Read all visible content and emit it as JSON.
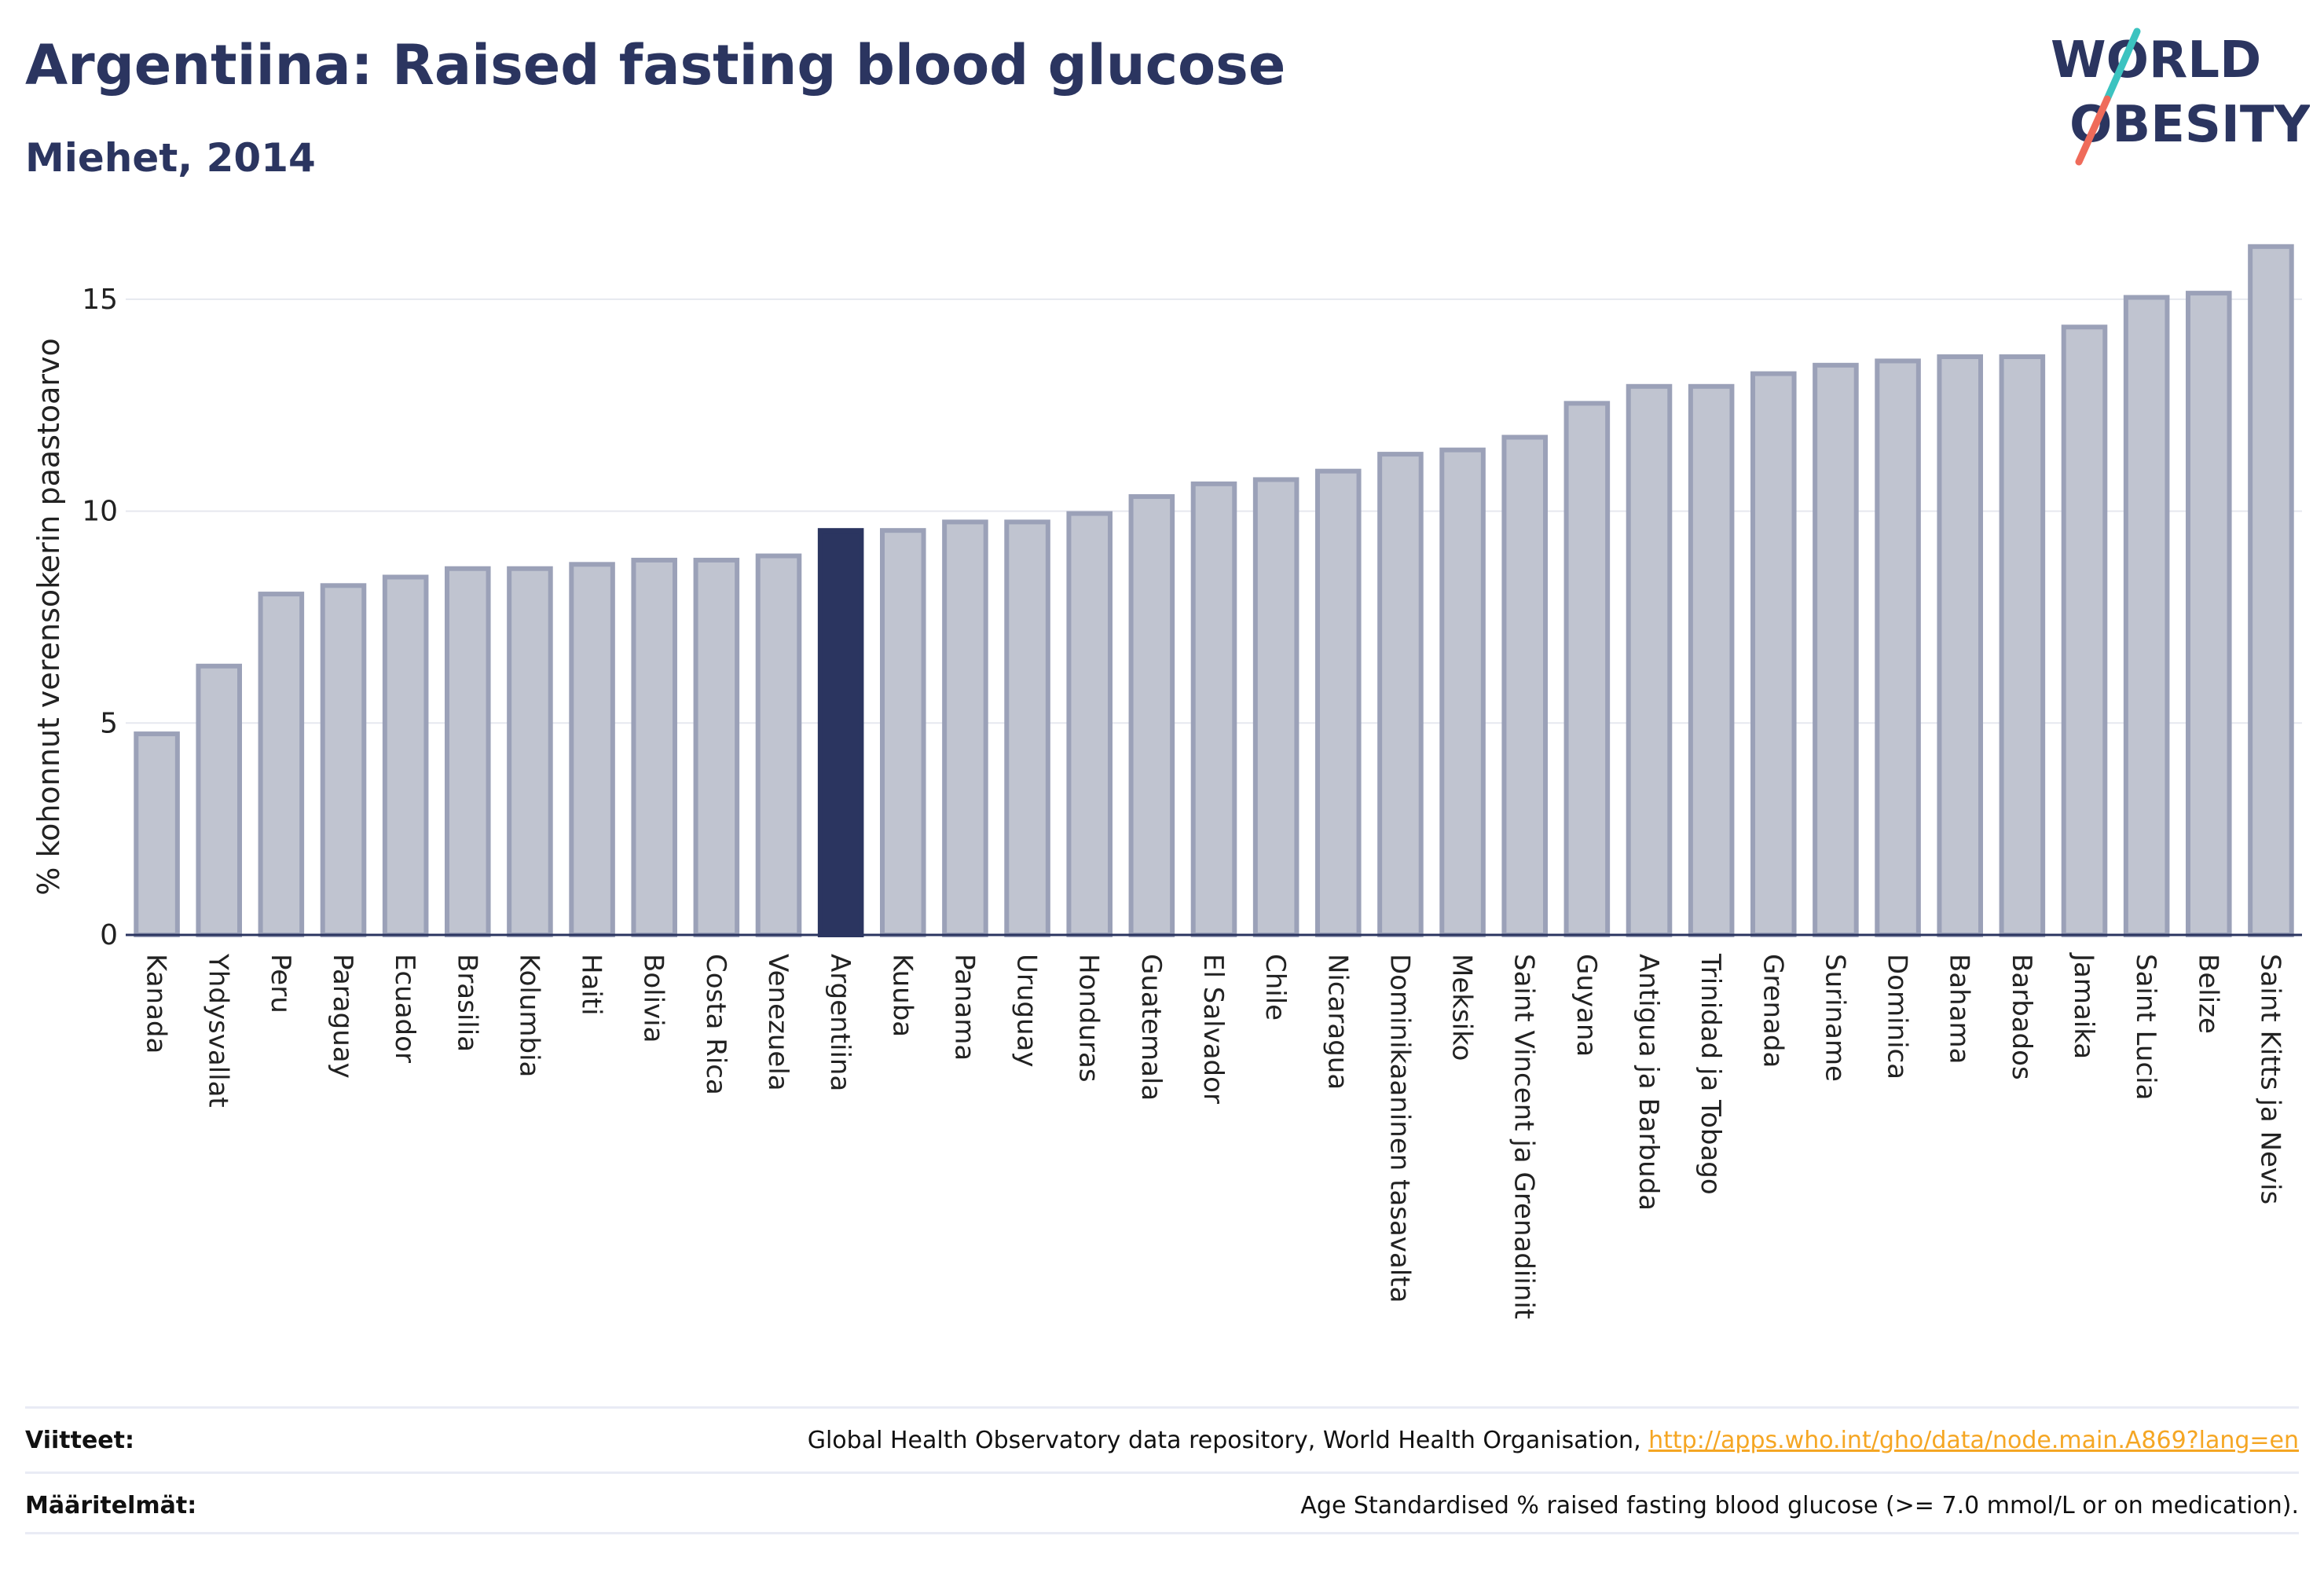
{
  "header": {
    "title": "Argentiina: Raised fasting blood glucose",
    "subtitle": "Miehet, 2014"
  },
  "logo": {
    "line1": "WORLD",
    "line2": "OBESITY",
    "text_color": "#2b3560",
    "slash_colors": [
      "#3cc3c0",
      "#ef6b5a"
    ]
  },
  "chart_data": {
    "type": "bar",
    "ylabel": "% kohonnut verensokerin paastoarvo",
    "xlabel": "",
    "ylim": [
      0,
      16.5
    ],
    "yticks": [
      0,
      5,
      10,
      15
    ],
    "grid": true,
    "highlight": "Argentiina",
    "colors": {
      "bar": "#c0c4d0",
      "bar_stroke": "#9ba1b8",
      "highlight": "#2b3560",
      "grid": "#e6e8ef",
      "axis": "#2b3560"
    },
    "categories": [
      "Kanada",
      "Yhdysvallat",
      "Peru",
      "Paraguay",
      "Ecuador",
      "Brasilia",
      "Kolumbia",
      "Haiti",
      "Bolivia",
      "Costa Rica",
      "Venezuela",
      "Argentiina",
      "Kuuba",
      "Panama",
      "Uruguay",
      "Honduras",
      "Guatemala",
      "El Salvador",
      "Chile",
      "Nicaragua",
      "Dominikaaninen tasavalta",
      "Meksiko",
      "Saint Vincent ja Grenadiinit",
      "Guyana",
      "Antigua ja Barbuda",
      "Trinidad ja Tobago",
      "Grenada",
      "Suriname",
      "Dominica",
      "Bahama",
      "Barbados",
      "Jamaika",
      "Saint Lucia",
      "Belize",
      "Saint Kitts ja Nevis"
    ],
    "values": [
      4.8,
      6.4,
      8.1,
      8.3,
      8.5,
      8.7,
      8.7,
      8.8,
      8.9,
      8.9,
      9.0,
      9.6,
      9.6,
      9.8,
      9.8,
      10.0,
      10.4,
      10.7,
      10.8,
      11.0,
      11.4,
      11.5,
      11.8,
      12.6,
      13.0,
      13.0,
      13.3,
      13.5,
      13.6,
      13.7,
      13.7,
      14.4,
      15.1,
      15.2,
      16.3
    ]
  },
  "footer": {
    "sources_label": "Viitteet:",
    "sources_text": "Global Health Observatory data repository, World Health Organisation, ",
    "sources_link": "http://apps.who.int/gho/data/node.main.A869?lang=en",
    "definitions_label": "Määritelmät:",
    "definitions_text": "Age Standardised % raised fasting blood glucose (>= 7.0 mmol/L or on medication)."
  }
}
